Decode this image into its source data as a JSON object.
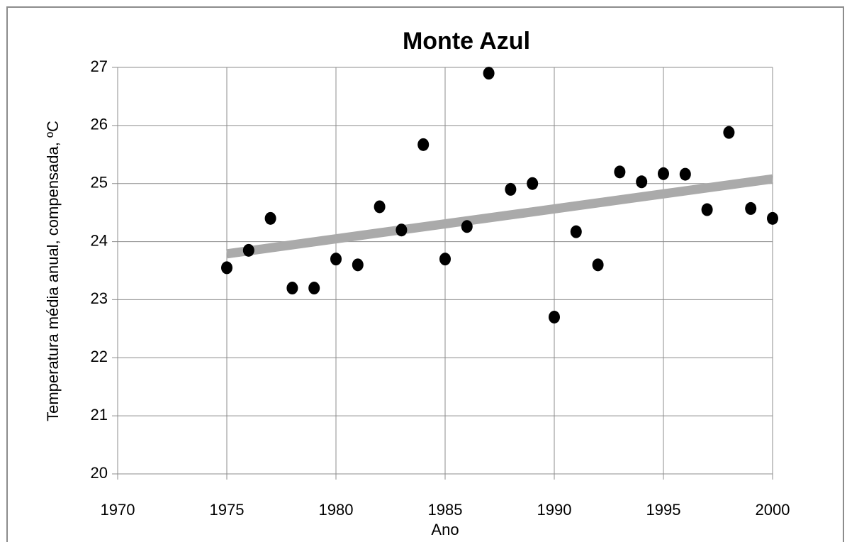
{
  "chart_data": {
    "type": "scatter",
    "title": "Monte Azul",
    "x_label": "Ano",
    "y_label": "Temperatura média anual, compensada, ºC",
    "series": [
      {
        "name": "Temperatura",
        "color": "#000000",
        "x": [
          1975,
          1976,
          1977,
          1978,
          1979,
          1980,
          1981,
          1982,
          1983,
          1984,
          1985,
          1986,
          1987,
          1988,
          1989,
          1990,
          1991,
          1992,
          1993,
          1994,
          1995,
          1996,
          1997,
          1998,
          1999,
          2000
        ],
        "values": [
          23.55,
          23.85,
          24.4,
          23.2,
          23.2,
          23.7,
          23.6,
          24.6,
          24.2,
          25.67,
          23.7,
          24.26,
          26.9,
          24.9,
          25.0,
          22.7,
          24.17,
          23.6,
          25.2,
          25.03,
          25.17,
          25.16,
          24.55,
          25.88,
          24.57,
          24.4
        ]
      }
    ],
    "trendline": {
      "color": "#aaaaaa",
      "x": [
        1975,
        2000
      ],
      "values": [
        23.79,
        25.08
      ]
    },
    "xlim": [
      1970,
      2000
    ],
    "xticks": [
      1970,
      1975,
      1980,
      1985,
      1990,
      1995,
      2000
    ],
    "ylim": [
      20,
      27
    ],
    "yticks": [
      20,
      21,
      22,
      23,
      24,
      25,
      26,
      27
    ],
    "grid": true
  }
}
